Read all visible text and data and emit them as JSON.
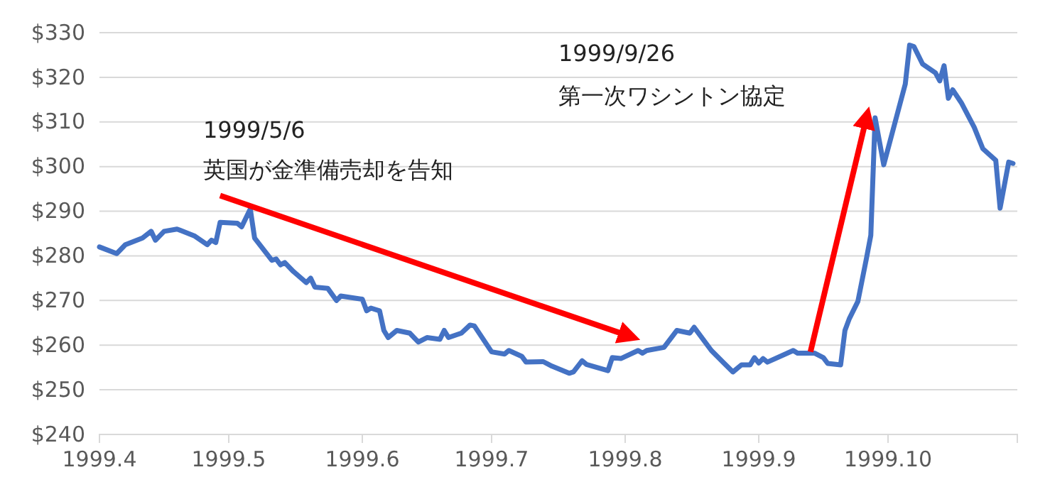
{
  "chart_data": {
    "type": "line",
    "xlim": [
      "1999-04-01",
      "1999-10-31"
    ],
    "xticks": [
      {
        "value": "1999-04-01",
        "label": "1999.4"
      },
      {
        "value": "1999-05-01",
        "label": "1999.5"
      },
      {
        "value": "1999-06-01",
        "label": "1999.6"
      },
      {
        "value": "1999-07-01",
        "label": "1999.7"
      },
      {
        "value": "1999-08-01",
        "label": "1999.8"
      },
      {
        "value": "1999-09-01",
        "label": "1999.9"
      },
      {
        "value": "1999-10-01",
        "label": "1999.10"
      }
    ],
    "ylim": [
      240,
      330
    ],
    "yticks": [
      {
        "value": 240,
        "label": "$240"
      },
      {
        "value": 250,
        "label": "$250"
      },
      {
        "value": 260,
        "label": "$260"
      },
      {
        "value": 270,
        "label": "$270"
      },
      {
        "value": 280,
        "label": "$280"
      },
      {
        "value": 290,
        "label": "$290"
      },
      {
        "value": 300,
        "label": "$300"
      },
      {
        "value": 310,
        "label": "$310"
      },
      {
        "value": 320,
        "label": "$320"
      },
      {
        "value": 330,
        "label": "$330"
      }
    ],
    "grid": "y",
    "marker": "none",
    "line_style": "solid",
    "annotations": [
      "1999/5/6",
      "英国が金準備売却を告知",
      "1999/9/26",
      "第一次ワシントン協定"
    ],
    "series": [
      {
        "color": "#4472c4",
        "x": [
          "1999-04-01",
          "1999-04-05",
          "1999-04-07",
          "1999-04-11",
          "1999-04-13",
          "1999-04-14",
          "1999-04-16",
          "1999-04-19",
          "1999-04-23",
          "1999-04-26",
          "1999-04-27",
          "1999-04-28",
          "1999-04-29",
          "1999-05-03",
          "1999-05-04",
          "1999-05-06",
          "1999-05-07",
          "1999-05-11",
          "1999-05-12",
          "1999-05-13",
          "1999-05-14",
          "1999-05-16",
          "1999-05-19",
          "1999-05-20",
          "1999-05-21",
          "1999-05-24",
          "1999-05-26",
          "1999-05-27",
          "1999-06-01",
          "1999-06-02",
          "1999-06-03",
          "1999-06-05",
          "1999-06-06",
          "1999-06-07",
          "1999-06-09",
          "1999-06-12",
          "1999-06-14",
          "1999-06-16",
          "1999-06-19",
          "1999-06-20",
          "1999-06-21",
          "1999-06-24",
          "1999-06-26",
          "1999-06-27",
          "1999-07-01",
          "1999-07-04",
          "1999-07-05",
          "1999-07-08",
          "1999-07-09",
          "1999-07-13",
          "1999-07-15",
          "1999-07-19",
          "1999-07-20",
          "1999-07-22",
          "1999-07-23",
          "1999-07-28",
          "1999-07-29",
          "1999-07-31",
          "1999-08-04",
          "1999-08-05",
          "1999-08-06",
          "1999-08-10",
          "1999-08-13",
          "1999-08-16",
          "1999-08-17",
          "1999-08-21",
          "1999-08-24",
          "1999-08-26",
          "1999-08-28",
          "1999-08-30",
          "1999-08-31",
          "1999-09-01",
          "1999-09-02",
          "1999-09-03",
          "1999-09-09",
          "1999-09-10",
          "1999-09-14",
          "1999-09-16",
          "1999-09-17",
          "1999-09-20",
          "1999-09-21",
          "1999-09-22",
          "1999-09-24",
          "1999-09-26",
          "1999-09-27",
          "1999-09-28",
          "1999-09-30",
          "1999-10-05",
          "1999-10-06",
          "1999-10-07",
          "1999-10-09",
          "1999-10-12",
          "1999-10-13",
          "1999-10-14",
          "1999-10-15",
          "1999-10-16",
          "1999-10-18",
          "1999-10-21",
          "1999-10-23",
          "1999-10-26",
          "1999-10-27",
          "1999-10-29",
          "1999-10-30"
        ],
        "values": [
          282,
          280.5,
          282.5,
          284,
          285.5,
          283.5,
          285.5,
          286,
          284.5,
          282.5,
          283.5,
          283,
          287.5,
          287.3,
          286.5,
          290.5,
          284,
          279,
          279.3,
          278,
          278.5,
          276.5,
          274,
          275,
          273,
          272.7,
          270,
          271,
          270.3,
          267.7,
          268.3,
          267.7,
          263.3,
          261.7,
          263.3,
          262.7,
          260.7,
          261.7,
          261.3,
          263.3,
          261.7,
          262.7,
          264.5,
          264.3,
          258.5,
          258,
          258.8,
          257.5,
          256.2,
          256.3,
          255.3,
          253.7,
          254,
          256.5,
          255.7,
          254.3,
          257.2,
          257,
          258.8,
          258.2,
          258.8,
          259.5,
          263.3,
          262.7,
          264,
          258.8,
          255.9,
          254,
          255.6,
          255.6,
          257.2,
          256,
          257,
          256.2,
          258.8,
          258.2,
          258.2,
          257.2,
          255.9,
          255.6,
          263.3,
          265.9,
          269.8,
          279.5,
          284.6,
          310.9,
          300.4,
          318.5,
          327.2,
          326.9,
          323,
          321,
          319.2,
          322.6,
          315.3,
          317.2,
          314.3,
          308.8,
          304,
          301.4,
          290.7,
          301,
          300.7
        ]
      }
    ]
  }
}
